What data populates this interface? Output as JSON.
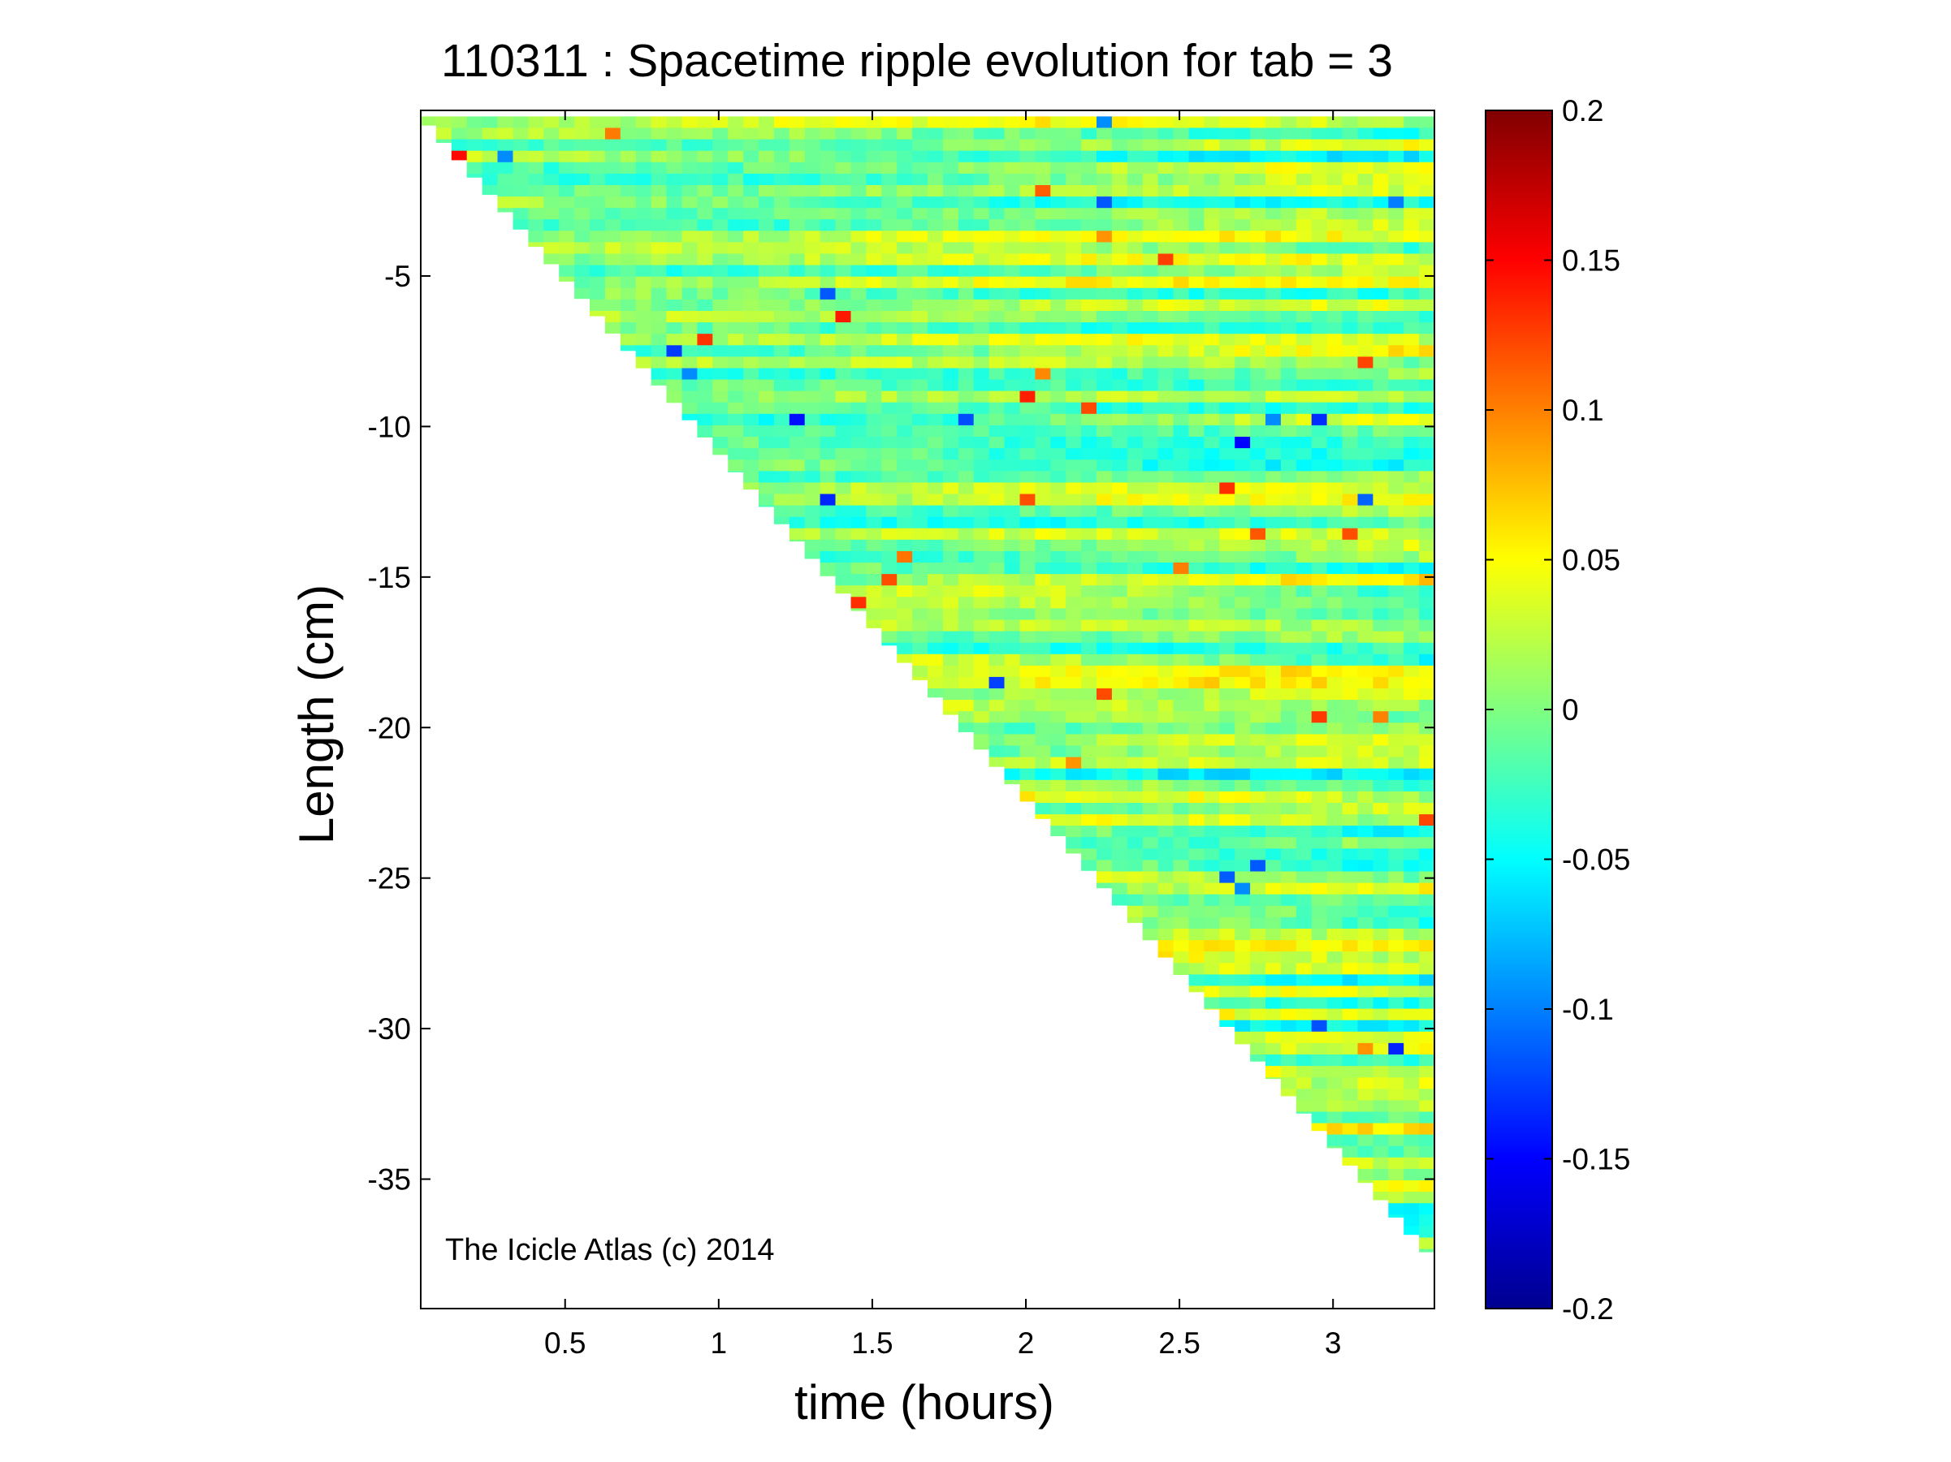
{
  "chart_data": {
    "type": "heatmap",
    "title": "110311 : Spacetime ripple evolution for tab = 3",
    "xlabel": "time (hours)",
    "ylabel": "Length (cm)",
    "xlim": [
      0.03,
      3.33
    ],
    "ylim": [
      -39.3,
      0.5
    ],
    "x_ticks": [
      0.5,
      1,
      1.5,
      2,
      2.5,
      3
    ],
    "x_tick_labels": [
      "0.5",
      "1",
      "1.5",
      "2",
      "2.5",
      "3"
    ],
    "y_ticks": [
      -5,
      -10,
      -15,
      -20,
      -25,
      -30,
      -35
    ],
    "y_tick_labels": [
      "-5",
      "-10",
      "-15",
      "-20",
      "-25",
      "-30",
      "-35"
    ],
    "data_extent": {
      "x_start": 0.03,
      "x_end": 3.33,
      "y_top": 0.3,
      "lower_edge_start": [
        0.03,
        0.3
      ],
      "lower_edge_end": [
        3.33,
        -37.7
      ]
    },
    "grid": false,
    "colormap": "jet",
    "colorbar": {
      "limits": [
        -0.2,
        0.2
      ],
      "ticks": [
        0.2,
        0.15,
        0.1,
        0.05,
        0,
        -0.05,
        -0.1,
        -0.15,
        -0.2
      ],
      "tick_labels": [
        "0.2",
        "0.15",
        "0.1",
        "0.05",
        "0",
        "-0.05",
        "-0.1",
        "-0.15",
        "-0.2"
      ],
      "colors": [
        "#00008f",
        "#0000ff",
        "#0080ff",
        "#00ffff",
        "#80ff80",
        "#ffff00",
        "#ff8000",
        "#ff0000",
        "#800000"
      ]
    },
    "annotations": [
      "The Icicle Atlas (c) 2014"
    ]
  }
}
